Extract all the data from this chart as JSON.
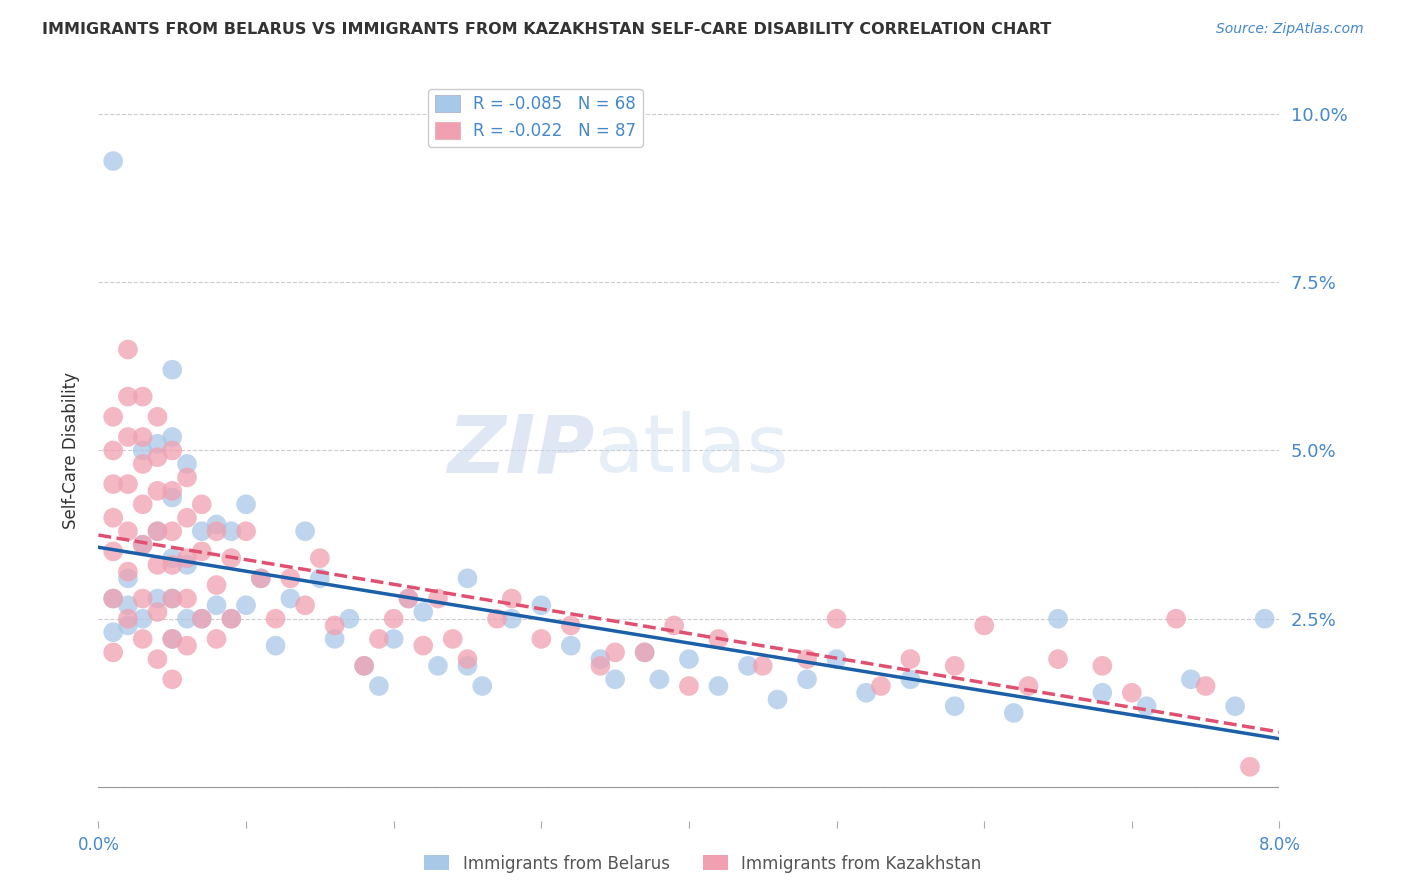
{
  "title": "IMMIGRANTS FROM BELARUS VS IMMIGRANTS FROM KAZAKHSTAN SELF-CARE DISABILITY CORRELATION CHART",
  "source": "Source: ZipAtlas.com",
  "ylabel": "Self-Care Disability",
  "xlim": [
    0.0,
    0.08
  ],
  "ylim": [
    -0.005,
    0.105
  ],
  "plot_ylim": [
    0.0,
    0.1
  ],
  "yticks": [
    0.0,
    0.025,
    0.05,
    0.075,
    0.1
  ],
  "ytick_labels": [
    "",
    "2.5%",
    "5.0%",
    "7.5%",
    "10.0%"
  ],
  "xticks": [
    0.0,
    0.01,
    0.02,
    0.03,
    0.04,
    0.05,
    0.06,
    0.07,
    0.08
  ],
  "xtick_labels": [
    "0.0%",
    "",
    "",
    "",
    "",
    "",
    "",
    "",
    "8.0%"
  ],
  "series": [
    {
      "label": "Immigrants from Belarus",
      "R": -0.085,
      "N": 68,
      "color": "#a8c8e8",
      "trend_color": "#1a5fa8",
      "trend_ls": "solid",
      "x": [
        0.001,
        0.001,
        0.001,
        0.002,
        0.002,
        0.002,
        0.003,
        0.003,
        0.003,
        0.004,
        0.004,
        0.004,
        0.005,
        0.005,
        0.005,
        0.005,
        0.005,
        0.005,
        0.006,
        0.006,
        0.006,
        0.007,
        0.007,
        0.008,
        0.008,
        0.009,
        0.009,
        0.01,
        0.01,
        0.011,
        0.012,
        0.013,
        0.014,
        0.015,
        0.016,
        0.017,
        0.018,
        0.019,
        0.02,
        0.021,
        0.022,
        0.023,
        0.025,
        0.025,
        0.026,
        0.028,
        0.03,
        0.032,
        0.034,
        0.035,
        0.037,
        0.038,
        0.04,
        0.042,
        0.044,
        0.046,
        0.048,
        0.05,
        0.052,
        0.055,
        0.058,
        0.062,
        0.065,
        0.068,
        0.071,
        0.074,
        0.077,
        0.079
      ],
      "y": [
        0.093,
        0.028,
        0.023,
        0.031,
        0.027,
        0.024,
        0.05,
        0.036,
        0.025,
        0.051,
        0.038,
        0.028,
        0.062,
        0.052,
        0.043,
        0.034,
        0.028,
        0.022,
        0.048,
        0.033,
        0.025,
        0.038,
        0.025,
        0.039,
        0.027,
        0.038,
        0.025,
        0.042,
        0.027,
        0.031,
        0.021,
        0.028,
        0.038,
        0.031,
        0.022,
        0.025,
        0.018,
        0.015,
        0.022,
        0.028,
        0.026,
        0.018,
        0.031,
        0.018,
        0.015,
        0.025,
        0.027,
        0.021,
        0.019,
        0.016,
        0.02,
        0.016,
        0.019,
        0.015,
        0.018,
        0.013,
        0.016,
        0.019,
        0.014,
        0.016,
        0.012,
        0.011,
        0.025,
        0.014,
        0.012,
        0.016,
        0.012,
        0.025
      ]
    },
    {
      "label": "Immigrants from Kazakhstan",
      "R": -0.022,
      "N": 87,
      "color": "#f0a0b0",
      "trend_color": "#e05070",
      "trend_ls": "dashed",
      "x": [
        0.001,
        0.001,
        0.001,
        0.001,
        0.001,
        0.001,
        0.001,
        0.002,
        0.002,
        0.002,
        0.002,
        0.002,
        0.002,
        0.002,
        0.003,
        0.003,
        0.003,
        0.003,
        0.003,
        0.003,
        0.003,
        0.004,
        0.004,
        0.004,
        0.004,
        0.004,
        0.004,
        0.004,
        0.005,
        0.005,
        0.005,
        0.005,
        0.005,
        0.005,
        0.005,
        0.006,
        0.006,
        0.006,
        0.006,
        0.006,
        0.007,
        0.007,
        0.007,
        0.008,
        0.008,
        0.008,
        0.009,
        0.009,
        0.01,
        0.011,
        0.012,
        0.013,
        0.014,
        0.015,
        0.016,
        0.018,
        0.019,
        0.02,
        0.021,
        0.022,
        0.023,
        0.024,
        0.025,
        0.027,
        0.028,
        0.03,
        0.032,
        0.034,
        0.035,
        0.037,
        0.039,
        0.04,
        0.042,
        0.045,
        0.048,
        0.05,
        0.053,
        0.055,
        0.058,
        0.06,
        0.063,
        0.065,
        0.068,
        0.07,
        0.073,
        0.075,
        0.078
      ],
      "y": [
        0.055,
        0.05,
        0.045,
        0.04,
        0.035,
        0.028,
        0.02,
        0.065,
        0.058,
        0.052,
        0.045,
        0.038,
        0.032,
        0.025,
        0.058,
        0.052,
        0.048,
        0.042,
        0.036,
        0.028,
        0.022,
        0.055,
        0.049,
        0.044,
        0.038,
        0.033,
        0.026,
        0.019,
        0.05,
        0.044,
        0.038,
        0.033,
        0.028,
        0.022,
        0.016,
        0.046,
        0.04,
        0.034,
        0.028,
        0.021,
        0.042,
        0.035,
        0.025,
        0.038,
        0.03,
        0.022,
        0.034,
        0.025,
        0.038,
        0.031,
        0.025,
        0.031,
        0.027,
        0.034,
        0.024,
        0.018,
        0.022,
        0.025,
        0.028,
        0.021,
        0.028,
        0.022,
        0.019,
        0.025,
        0.028,
        0.022,
        0.024,
        0.018,
        0.02,
        0.02,
        0.024,
        0.015,
        0.022,
        0.018,
        0.019,
        0.025,
        0.015,
        0.019,
        0.018,
        0.024,
        0.015,
        0.019,
        0.018,
        0.014,
        0.025,
        0.015,
        0.003
      ]
    }
  ],
  "watermark_zip": "ZIP",
  "watermark_atlas": "atlas",
  "background_color": "#ffffff",
  "grid_color": "#cccccc",
  "title_color": "#333333",
  "tick_color": "#4488cc"
}
